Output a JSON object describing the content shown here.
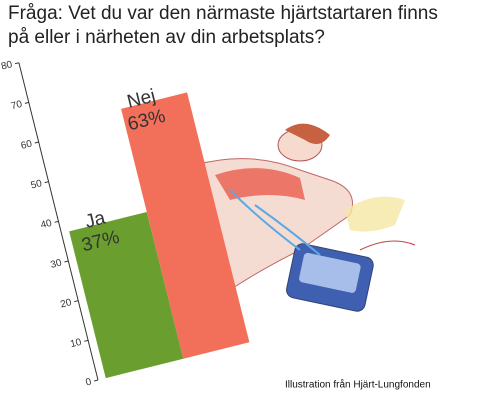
{
  "chart_data": {
    "type": "bar",
    "title": "Fråga: Vet du var den närmaste hjärtstartaren finns på eller i närheten av din arbetsplats?",
    "categories": [
      "Ja",
      "Nej"
    ],
    "values": [
      37,
      63
    ],
    "value_labels": [
      "37%",
      "63%"
    ],
    "colors": [
      "#6a9e2e",
      "#f2705a"
    ],
    "ylim": [
      0,
      80
    ],
    "yticks": [
      0,
      10,
      20,
      30,
      40,
      50,
      60,
      70,
      80
    ],
    "credit": "Illustration från Hjärt-Lungfonden"
  }
}
